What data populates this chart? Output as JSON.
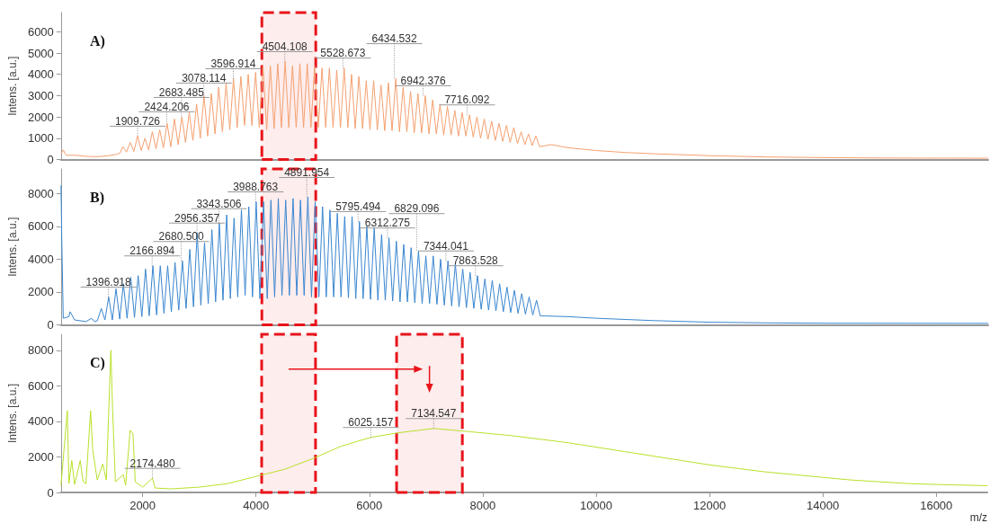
{
  "chart_data": [
    {
      "type": "line",
      "title": "A)",
      "ylabel": "Intens. [a.u.]",
      "xlim": [
        560,
        16900
      ],
      "xticks": [
        2000,
        4000,
        6000,
        8000,
        10000,
        12000,
        14000,
        16000
      ],
      "ylim": [
        0,
        6900
      ],
      "yticks": [
        0,
        1000,
        2000,
        3000,
        4000,
        5000,
        6000
      ],
      "tick_labels": "y",
      "marker": "none",
      "series": [
        {
          "color": "#f4a070",
          "x": [
            560,
            600,
            650,
            800,
            1000,
            1200,
            1400,
            1550,
            1600,
            1650,
            1715,
            1780,
            1845,
            1910,
            1975,
            2040,
            2105,
            2170,
            2235,
            2300,
            2365,
            2430,
            2495,
            2560,
            2625,
            2690,
            2755,
            2820,
            2885,
            2950,
            3015,
            3080,
            3145,
            3210,
            3275,
            3340,
            3405,
            3470,
            3535,
            3600,
            3665,
            3730,
            3795,
            3860,
            3925,
            3990,
            4055,
            4120,
            4185,
            4250,
            4315,
            4380,
            4445,
            4510,
            4575,
            4640,
            4705,
            4770,
            4835,
            4900,
            4965,
            5030,
            5095,
            5160,
            5225,
            5290,
            5355,
            5420,
            5485,
            5550,
            5615,
            5680,
            5745,
            5810,
            5875,
            5940,
            6005,
            6070,
            6135,
            6200,
            6265,
            6330,
            6395,
            6460,
            6525,
            6590,
            6655,
            6720,
            6785,
            6850,
            6915,
            6980,
            7045,
            7110,
            7175,
            7240,
            7305,
            7370,
            7435,
            7500,
            7565,
            7630,
            7695,
            7760,
            7825,
            7890,
            7955,
            8020,
            8085,
            8150,
            8215,
            8280,
            8345,
            8410,
            8475,
            8540,
            8605,
            8670,
            8735,
            8800,
            8865,
            8930,
            8995,
            9200,
            9500,
            10000,
            10500,
            11000,
            12000,
            13000,
            14000,
            15000,
            16900
          ],
          "values": [
            250,
            450,
            200,
            200,
            150,
            130,
            180,
            250,
            300,
            600,
            350,
            800,
            380,
            1100,
            420,
            1000,
            450,
            1300,
            500,
            1400,
            550,
            1700,
            600,
            1900,
            700,
            2000,
            800,
            2200,
            900,
            2600,
            1000,
            3000,
            1100,
            3100,
            1200,
            3400,
            1300,
            3600,
            1400,
            3800,
            1500,
            3900,
            1600,
            4000,
            1600,
            4100,
            1500,
            4400,
            1400,
            4400,
            1450,
            4500,
            1500,
            4600,
            1500,
            4400,
            1500,
            4500,
            1500,
            4500,
            1500,
            4400,
            1500,
            4300,
            1500,
            4300,
            1500,
            4200,
            1500,
            4300,
            1500,
            4000,
            1450,
            3900,
            1450,
            3700,
            1400,
            3700,
            1400,
            3500,
            1350,
            3600,
            1350,
            3800,
            1300,
            3400,
            1300,
            3200,
            1250,
            3100,
            1250,
            3000,
            1200,
            2800,
            1200,
            2600,
            1150,
            2500,
            1150,
            2300,
            1100,
            2200,
            1100,
            2100,
            1050,
            2000,
            1000,
            1900,
            950,
            1800,
            900,
            1700,
            850,
            1600,
            800,
            1500,
            750,
            1300,
            700,
            1200,
            650,
            1100,
            600,
            700,
            550,
            420,
            330,
            270,
            180,
            120,
            90,
            70,
            60
          ]
        }
      ],
      "annotations": [
        {
          "text": "1909.726",
          "x": 1909.726,
          "y": 1100
        },
        {
          "text": "2424.206",
          "x": 2424.206,
          "y": 1700
        },
        {
          "text": "2683.485",
          "x": 2683.485,
          "y": 2000
        },
        {
          "text": "3078.114",
          "x": 3078.114,
          "y": 3000
        },
        {
          "text": "3596.914",
          "x": 3596.914,
          "y": 3800
        },
        {
          "text": "4504.108",
          "x": 4504.108,
          "y": 4600
        },
        {
          "text": "5528.673",
          "x": 5528.673,
          "y": 4300
        },
        {
          "text": "6434.532",
          "x": 6434.532,
          "y": 3800
        },
        {
          "text": "6942.376",
          "x": 6942.376,
          "y": 3000
        },
        {
          "text": "7716.092",
          "x": 7716.092,
          "y": 2100
        }
      ],
      "bands": [
        {
          "axis": "x",
          "from": 4100,
          "to": 5050,
          "color": "#e8141b"
        }
      ]
    },
    {
      "type": "line",
      "title": "B)",
      "ylabel": "Intens. [a.u.]",
      "xlim": [
        560,
        16900
      ],
      "xticks": [
        2000,
        4000,
        6000,
        8000,
        10000,
        12000,
        14000,
        16000
      ],
      "ylim": [
        0,
        9500
      ],
      "yticks": [
        0,
        2000,
        4000,
        6000,
        8000
      ],
      "tick_labels": "y",
      "marker": "none",
      "series": [
        {
          "color": "#3a86d0",
          "x": [
            560,
            575,
            600,
            700,
            720,
            800,
            1000,
            1100,
            1150,
            1200,
            1270,
            1335,
            1400,
            1465,
            1530,
            1595,
            1660,
            1725,
            1790,
            1855,
            1920,
            1985,
            2050,
            2115,
            2180,
            2245,
            2310,
            2375,
            2440,
            2505,
            2570,
            2635,
            2700,
            2765,
            2830,
            2895,
            2960,
            3025,
            3090,
            3155,
            3220,
            3285,
            3350,
            3415,
            3480,
            3545,
            3610,
            3675,
            3740,
            3805,
            3870,
            3935,
            4000,
            4065,
            4130,
            4195,
            4260,
            4325,
            4390,
            4455,
            4520,
            4585,
            4650,
            4715,
            4780,
            4845,
            4910,
            4975,
            5040,
            5105,
            5170,
            5235,
            5300,
            5365,
            5430,
            5495,
            5560,
            5625,
            5690,
            5755,
            5820,
            5885,
            5950,
            6015,
            6080,
            6145,
            6210,
            6275,
            6340,
            6405,
            6470,
            6535,
            6600,
            6665,
            6730,
            6795,
            6860,
            6925,
            6990,
            7055,
            7120,
            7185,
            7250,
            7315,
            7380,
            7445,
            7510,
            7575,
            7640,
            7705,
            7770,
            7835,
            7900,
            7965,
            8030,
            8095,
            8160,
            8225,
            8290,
            8355,
            8420,
            8485,
            8550,
            8615,
            8680,
            8745,
            8810,
            8875,
            8940,
            9005,
            9500,
            10000,
            10500,
            11000,
            12000,
            13000,
            14000,
            16900
          ],
          "values": [
            8500,
            5000,
            400,
            500,
            800,
            300,
            200,
            400,
            200,
            250,
            1000,
            300,
            1700,
            300,
            2200,
            350,
            2500,
            400,
            2900,
            450,
            3000,
            500,
            3400,
            550,
            3600,
            600,
            3600,
            700,
            3600,
            800,
            3800,
            900,
            3900,
            1000,
            4600,
            1100,
            5600,
            1200,
            5000,
            1300,
            5800,
            1400,
            6200,
            1500,
            6700,
            1600,
            6500,
            1700,
            7000,
            1800,
            7200,
            1700,
            7500,
            1600,
            7500,
            1600,
            7600,
            1700,
            7700,
            1800,
            7600,
            1800,
            7700,
            1800,
            7600,
            1800,
            7800,
            1700,
            7500,
            1700,
            7200,
            1700,
            7000,
            1700,
            6800,
            1700,
            6600,
            1650,
            6600,
            1600,
            6300,
            1600,
            6000,
            1550,
            5900,
            1500,
            5500,
            1500,
            5300,
            1450,
            5100,
            1400,
            4900,
            1400,
            4700,
            1350,
            4500,
            1300,
            4200,
            1300,
            4200,
            1250,
            4000,
            1200,
            3900,
            1150,
            3700,
            1100,
            3400,
            1050,
            3200,
            1000,
            3000,
            950,
            2800,
            900,
            2700,
            850,
            2500,
            800,
            2300,
            750,
            2100,
            700,
            1900,
            650,
            1700,
            600,
            1500,
            550,
            500,
            400,
            330,
            260,
            160,
            120,
            100,
            90
          ]
        }
      ],
      "annotations": [
        {
          "text": "1396.918",
          "x": 1396.918,
          "y": 1700
        },
        {
          "text": "2166.894",
          "x": 2166.894,
          "y": 3600
        },
        {
          "text": "2680.500",
          "x": 2680.5,
          "y": 3900
        },
        {
          "text": "2956.357",
          "x": 2956.357,
          "y": 5600
        },
        {
          "text": "3343.506",
          "x": 3343.506,
          "y": 6200
        },
        {
          "text": "3988.763",
          "x": 3988.763,
          "y": 7500
        },
        {
          "text": "4891.954",
          "x": 4891.954,
          "y": 7800
        },
        {
          "text": "5795.494",
          "x": 5795.494,
          "y": 6300
        },
        {
          "text": "6312.275",
          "x": 6312.275,
          "y": 5300
        },
        {
          "text": "6829.096",
          "x": 6829.096,
          "y": 4500
        },
        {
          "text": "7344.041",
          "x": 7344.041,
          "y": 3900
        },
        {
          "text": "7863.528",
          "x": 7863.528,
          "y": 3000
        }
      ],
      "bands": [
        {
          "axis": "x",
          "from": 4100,
          "to": 5050,
          "color": "#e8141b"
        }
      ]
    },
    {
      "type": "line",
      "title": "C)",
      "xlabel": "m/z",
      "ylabel": "Intens. [a.u.]",
      "xlim": [
        560,
        16900
      ],
      "xticks": [
        2000,
        4000,
        6000,
        8000,
        10000,
        12000,
        14000,
        16000
      ],
      "ylim": [
        0,
        8900
      ],
      "yticks": [
        0,
        2000,
        4000,
        6000,
        8000
      ],
      "marker": "none",
      "series": [
        {
          "color": "#b8e02a",
          "x": [
            560,
            672,
            700,
            750,
            800,
            900,
            950,
            1000,
            1083,
            1120,
            1200,
            1296,
            1360,
            1440,
            1470,
            1520,
            1660,
            1700,
            1780,
            1830,
            1870,
            2000,
            2174,
            2220,
            2500,
            3000,
            3500,
            4000,
            4500,
            5000,
            5500,
            6025,
            6500,
            7134,
            7500,
            8000,
            8500,
            9000,
            9500,
            10000,
            10500,
            11000,
            11500,
            12000,
            12500,
            13000,
            13500,
            14000,
            14500,
            15000,
            15500,
            16000,
            16900
          ],
          "values": [
            400,
            4600,
            500,
            1800,
            450,
            1800,
            600,
            500,
            4600,
            2400,
            700,
            1600,
            700,
            8000,
            4700,
            600,
            1000,
            400,
            3500,
            3300,
            600,
            300,
            800,
            250,
            200,
            300,
            500,
            900,
            1300,
            1900,
            2600,
            3100,
            3350,
            3600,
            3500,
            3350,
            3200,
            3000,
            2800,
            2550,
            2300,
            2050,
            1800,
            1550,
            1350,
            1150,
            1000,
            850,
            700,
            600,
            500,
            450,
            380
          ]
        }
      ],
      "annotations": [
        {
          "text": "2174.480",
          "x": 2174.48,
          "y": 800
        },
        {
          "text": "6025.157",
          "x": 6025.157,
          "y": 3100
        },
        {
          "text": "7134.547",
          "x": 7134.547,
          "y": 3600
        }
      ],
      "bands": [
        {
          "axis": "x",
          "from": 4100,
          "to": 5050,
          "color": "#e8141b"
        },
        {
          "axis": "x",
          "from": 6480,
          "to": 7640,
          "color": "#e8141b"
        }
      ]
    }
  ]
}
